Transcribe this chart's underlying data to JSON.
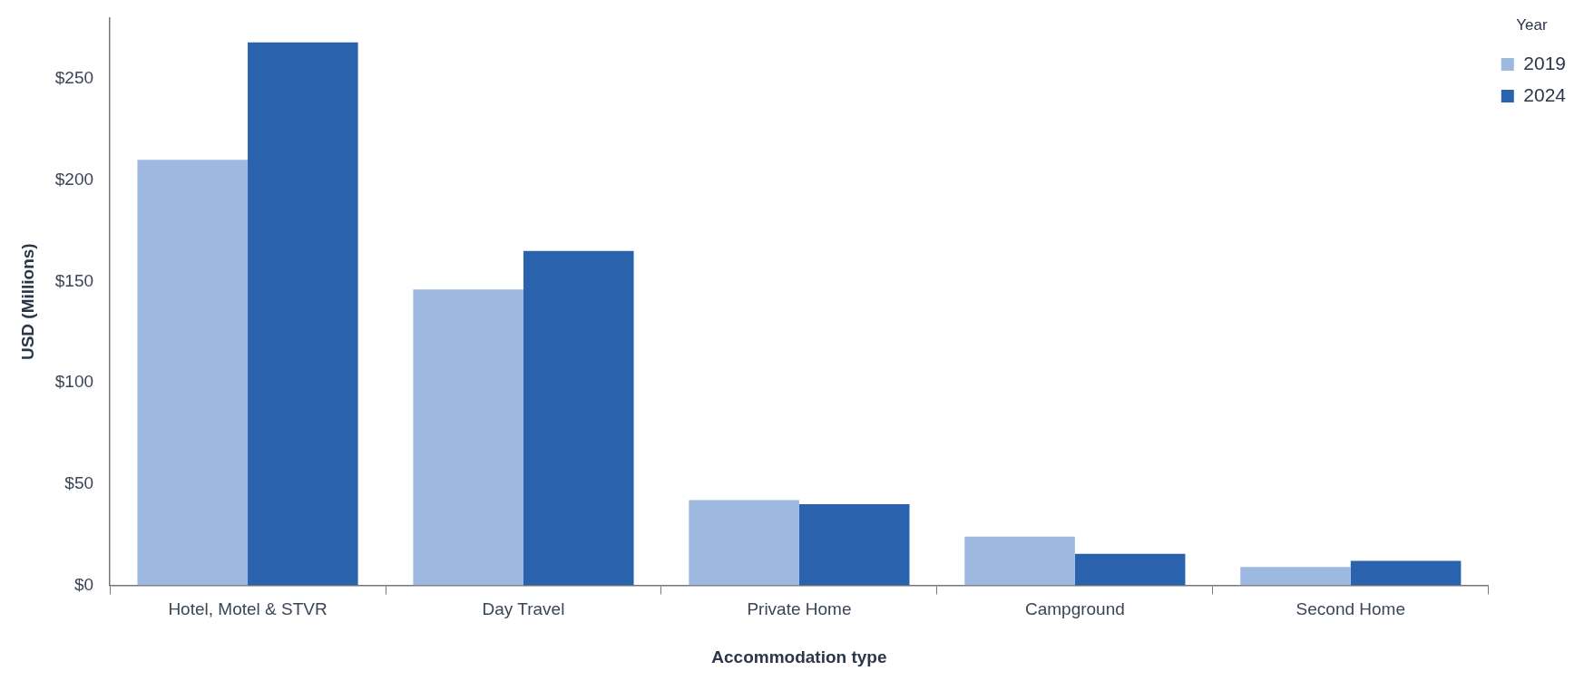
{
  "chart_data": {
    "type": "bar",
    "xlabel": "Accommodation type",
    "ylabel": "USD (Millions)",
    "legend_title": "Year",
    "categories": [
      "Hotel, Motel & STVR",
      "Day Travel",
      "Private Home",
      "Campground",
      "Second Home"
    ],
    "series": [
      {
        "name": "2019",
        "color": "#9db9e0",
        "values": [
          210,
          146,
          42,
          24,
          9
        ]
      },
      {
        "name": "2024",
        "color": "#2a62ae",
        "values": [
          268,
          165,
          40,
          15.5,
          12
        ]
      }
    ],
    "ylim": [
      0,
      280
    ],
    "yticks": [
      {
        "value": 0,
        "label": "$0"
      },
      {
        "value": 50,
        "label": "$50"
      },
      {
        "value": 100,
        "label": "$100"
      },
      {
        "value": 150,
        "label": "$150"
      },
      {
        "value": 200,
        "label": "$200"
      },
      {
        "value": 250,
        "label": "$250"
      }
    ],
    "grid": false,
    "legend": "top right"
  }
}
